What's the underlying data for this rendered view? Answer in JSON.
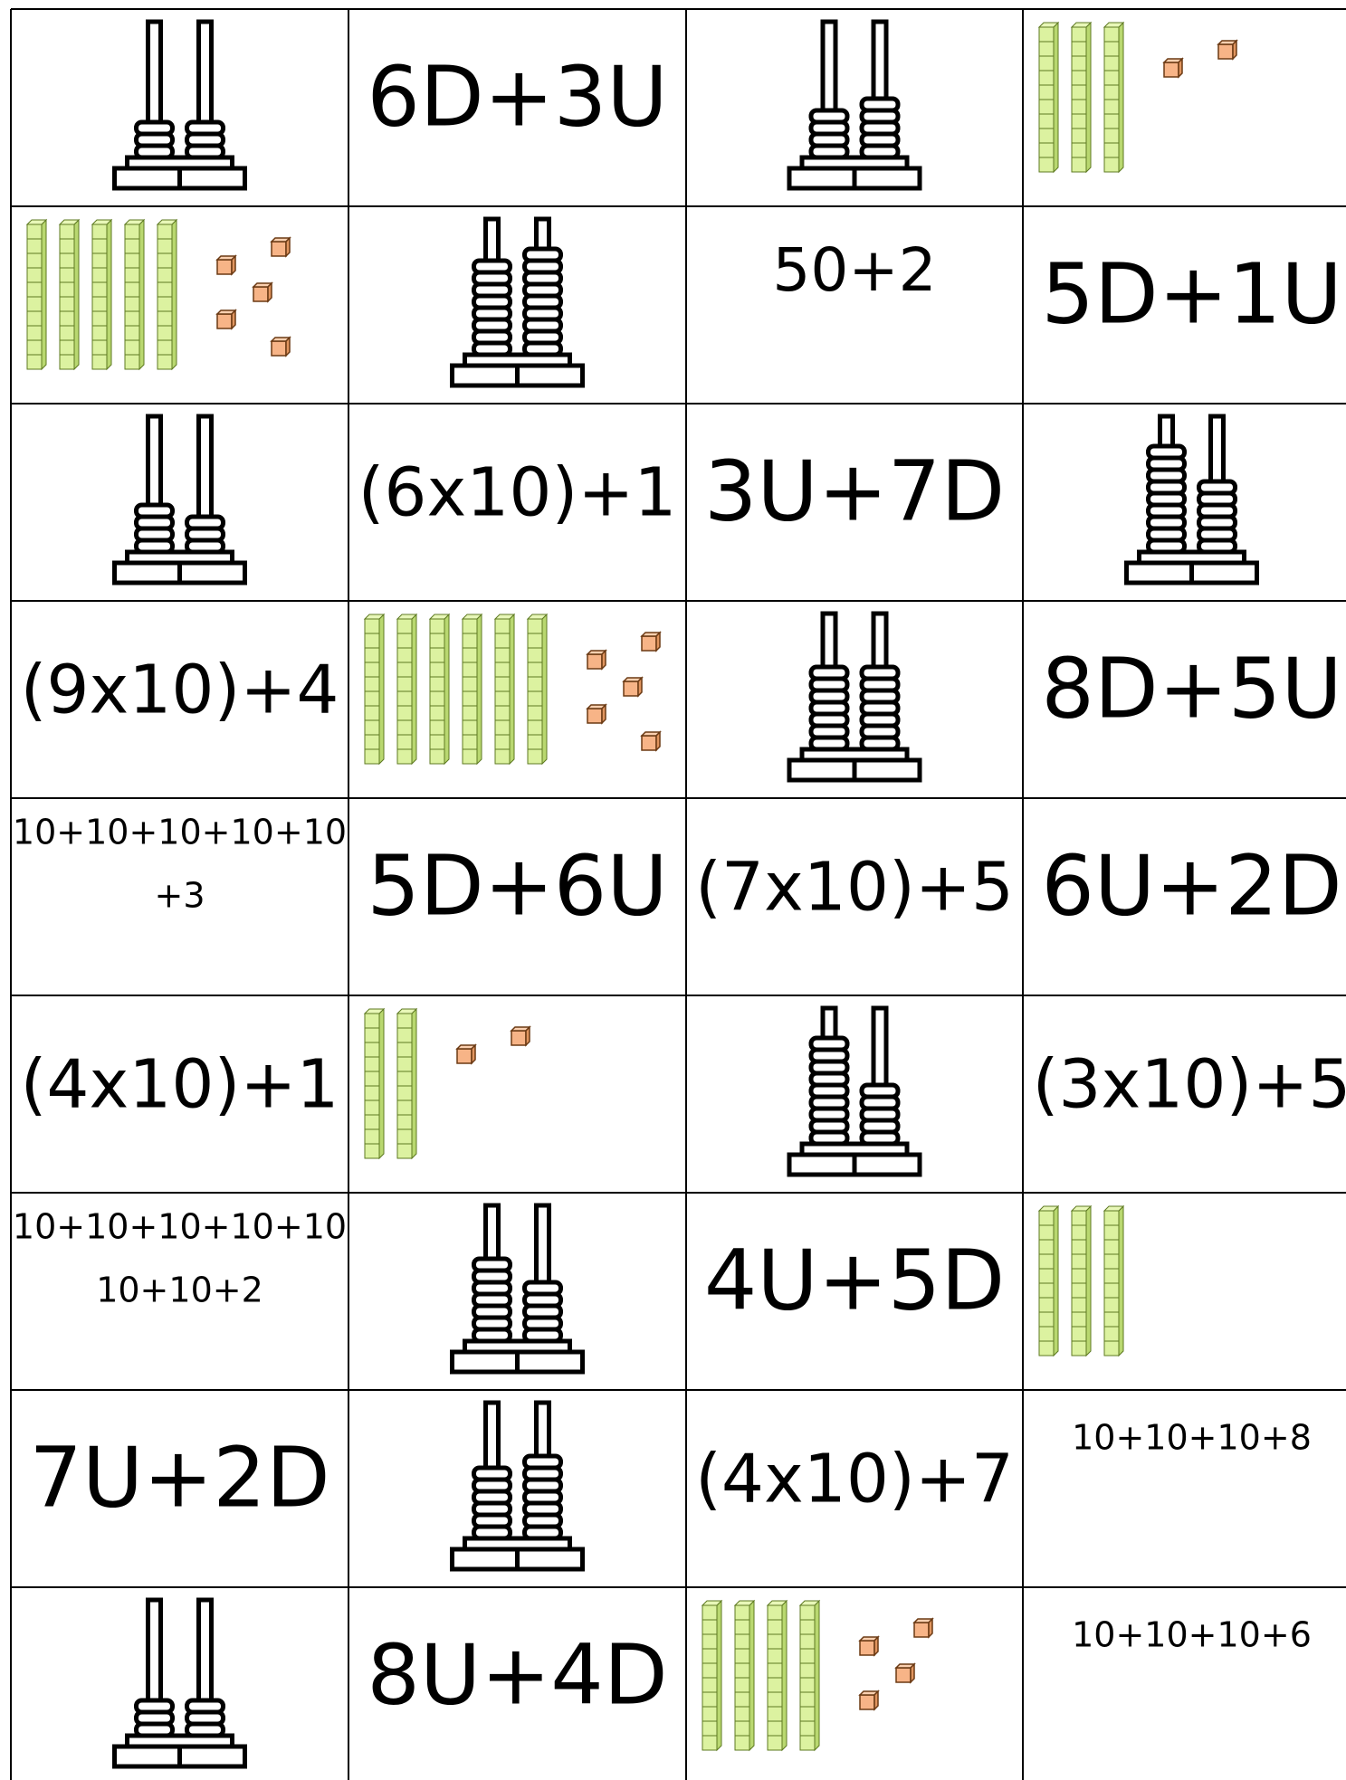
{
  "rows": [
    [
      {
        "abacus": [
          3,
          3
        ]
      },
      "6D+3U",
      {
        "abacus": [
          4,
          5
        ]
      },
      {
        "blocks": [
          3,
          2
        ]
      }
    ],
    [
      {
        "blocks": [
          5,
          5
        ]
      },
      {
        "abacus": [
          8,
          9
        ]
      },
      "50+2",
      "5D+1U"
    ],
    [
      {
        "abacus": [
          4,
          3
        ]
      },
      "(6x10)+1",
      "3U+7D",
      {
        "abacus": [
          9,
          6
        ]
      }
    ],
    [
      "(9x10)+4",
      {
        "blocks": [
          6,
          5
        ]
      },
      {
        "abacus": [
          7,
          7
        ]
      },
      "8D+5U"
    ],
    [
      [
        "10+10+10+10+10",
        "+3"
      ],
      "5D+6U",
      "(7x10)+5",
      "6U+2D"
    ],
    [
      "(4x10)+1",
      {
        "blocks": [
          2,
          2
        ]
      },
      {
        "abacus": [
          9,
          5
        ]
      },
      "(3x10)+5"
    ],
    [
      [
        "10+10+10+10+10",
        "10+10+2"
      ],
      {
        "abacus": [
          7,
          5
        ]
      },
      "4U+5D",
      {
        "blocks": [
          3,
          0
        ]
      }
    ],
    [
      "7U+2D",
      {
        "abacus": [
          6,
          7
        ]
      },
      "(4x10)+7",
      "10+10+10+8"
    ],
    [
      {
        "abacus": [
          3,
          3
        ]
      },
      "8U+4D",
      {
        "blocks": [
          4,
          4
        ]
      },
      "10+10+10+6"
    ]
  ]
}
